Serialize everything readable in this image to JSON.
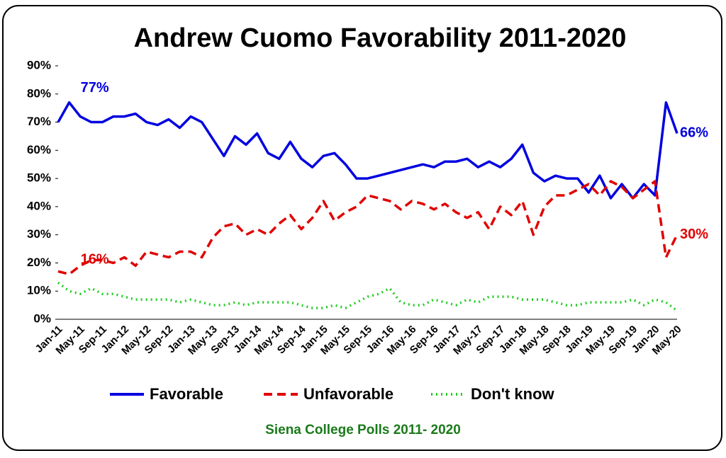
{
  "chart_data": {
    "type": "line",
    "title": "Andrew Cuomo Favorability 2011-2020",
    "source": "Siena College Polls 2011- 2020",
    "categories": [
      "Jan-11",
      null,
      "May-11",
      null,
      "Sep-11",
      null,
      "Jan-12",
      null,
      "May-12",
      null,
      "Sep-12",
      null,
      "Jan-13",
      null,
      "May-13",
      null,
      "Sep-13",
      null,
      "Jan-14",
      null,
      "May-14",
      null,
      "Sep-14",
      null,
      "Jan-15",
      null,
      "May-15",
      null,
      "Sep-15",
      null,
      "Jan-16",
      null,
      "May-16",
      null,
      "Sep-16",
      null,
      "Jan-17",
      null,
      "May-17",
      null,
      "Sep-17",
      null,
      "Jan-18",
      null,
      "May-18",
      null,
      "Sep-18",
      null,
      "Jan-19",
      null,
      "May-19",
      null,
      "Sep-19",
      null,
      "Jan-20",
      null,
      "May-20"
    ],
    "ylim": [
      0,
      90
    ],
    "yticks": [
      {
        "value": 0,
        "label": "0%"
      },
      {
        "value": 10,
        "label": "10%"
      },
      {
        "value": 20,
        "label": "20%"
      },
      {
        "value": 30,
        "label": "30%"
      },
      {
        "value": 40,
        "label": "40%"
      },
      {
        "value": 50,
        "label": "50%"
      },
      {
        "value": 60,
        "label": "60%"
      },
      {
        "value": 70,
        "label": "70%"
      },
      {
        "value": 80,
        "label": "80%"
      },
      {
        "value": 90,
        "label": "90%"
      }
    ],
    "legend": "bottom",
    "series": [
      {
        "name": "Favorable",
        "color": "#0000e0",
        "style": "solid",
        "values": [
          70,
          77,
          72,
          70,
          70,
          72,
          72,
          73,
          70,
          69,
          71,
          68,
          72,
          70,
          64,
          58,
          65,
          62,
          66,
          59,
          57,
          63,
          57,
          54,
          58,
          59,
          55,
          50,
          50,
          51,
          52,
          53,
          54,
          55,
          54,
          56,
          56,
          57,
          54,
          56,
          54,
          57,
          62,
          52,
          49,
          51,
          50,
          50,
          45,
          51,
          43,
          48,
          43,
          48,
          44,
          77,
          66
        ],
        "value_labels": [
          null,
          "77%",
          null,
          null,
          null,
          null,
          null,
          null,
          null,
          null,
          null,
          null,
          null,
          null,
          null,
          null,
          null,
          null,
          null,
          null,
          null,
          null,
          null,
          null,
          null,
          null,
          null,
          null,
          null,
          null,
          null,
          null,
          null,
          null,
          null,
          null,
          null,
          null,
          null,
          null,
          null,
          null,
          null,
          null,
          null,
          null,
          null,
          null,
          null,
          null,
          null,
          null,
          null,
          null,
          null,
          null,
          "66%"
        ]
      },
      {
        "name": "Unfavorable",
        "color": "#e00000",
        "style": "dashed",
        "values": [
          17,
          16,
          19,
          21,
          21,
          20,
          22,
          19,
          24,
          23,
          22,
          24,
          24,
          22,
          29,
          33,
          34,
          30,
          32,
          30,
          34,
          37,
          32,
          36,
          42,
          35,
          38,
          40,
          44,
          43,
          42,
          39,
          42,
          41,
          39,
          41,
          38,
          36,
          38,
          32,
          40,
          37,
          42,
          30,
          40,
          44,
          44,
          46,
          48,
          44,
          49,
          47,
          43,
          46,
          49,
          22,
          30
        ],
        "value_labels": [
          null,
          "16%",
          null,
          null,
          null,
          null,
          null,
          null,
          null,
          null,
          null,
          null,
          null,
          null,
          null,
          null,
          null,
          null,
          null,
          null,
          null,
          null,
          null,
          null,
          null,
          null,
          null,
          null,
          null,
          null,
          null,
          null,
          null,
          null,
          null,
          null,
          null,
          null,
          null,
          null,
          null,
          null,
          null,
          null,
          null,
          null,
          null,
          null,
          null,
          null,
          null,
          null,
          null,
          null,
          null,
          null,
          "30%"
        ]
      },
      {
        "name": "Don't know",
        "color": "#22cc22",
        "style": "dotted",
        "values": [
          13,
          10,
          9,
          11,
          9,
          9,
          8,
          7,
          7,
          7,
          7,
          6,
          7,
          6,
          5,
          5,
          6,
          5,
          6,
          6,
          6,
          6,
          5,
          4,
          4,
          5,
          4,
          6,
          8,
          9,
          11,
          6,
          5,
          5,
          7,
          6,
          5,
          7,
          6,
          8,
          8,
          8,
          7,
          7,
          7,
          6,
          5,
          5,
          6,
          6,
          6,
          6,
          7,
          5,
          7,
          6,
          3
        ]
      }
    ]
  }
}
